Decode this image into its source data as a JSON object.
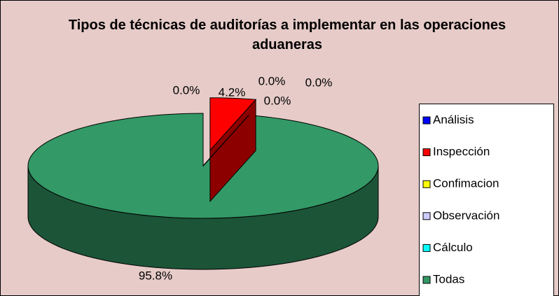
{
  "chart_data": {
    "type": "pie3d",
    "title": "Tipos de técnicas de auditorías a implementar en las operaciones aduaneras",
    "categories": [
      "Análisis",
      "Inspección",
      "Confimacion",
      "Observación",
      "Cálculo",
      "Todas"
    ],
    "values": [
      0,
      4.2,
      0,
      0,
      0,
      95.8
    ],
    "value_labels": [
      "0.0%",
      "4.2%",
      "0.0%",
      "0.0%",
      "0.0%",
      "95.8%"
    ],
    "colors": [
      "#0000ff",
      "#ff0000",
      "#ffff00",
      "#ccccff",
      "#00ffff",
      "#339966"
    ],
    "legend": "right"
  }
}
